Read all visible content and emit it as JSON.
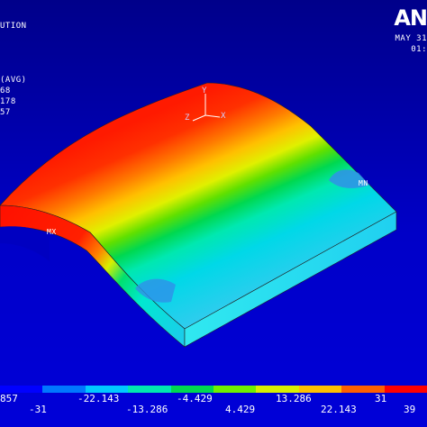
{
  "header": {
    "title_fragment": "UTION",
    "logo_fragment": "AN",
    "date_fragment": "MAY 31",
    "time_fragment": "01:"
  },
  "info": {
    "avg": "(AVG)",
    "line2": "68",
    "line3": "178",
    "line4": "57"
  },
  "markers": {
    "max": "MX",
    "min": "MN"
  },
  "triad": {
    "x": "X",
    "y": "Y",
    "z": "Z"
  },
  "legend": {
    "colors": [
      "#0000ff",
      "#0077ff",
      "#00c8ff",
      "#00e8b0",
      "#00d850",
      "#70f000",
      "#d8f000",
      "#ffc000",
      "#ff6000",
      "#ff0000"
    ],
    "top_labels": [
      "857",
      "-22.143",
      "-4.429",
      "13.286",
      "31"
    ],
    "bottom_labels": [
      "-31",
      "-13.286",
      "4.429",
      "22.143",
      "39"
    ]
  }
}
